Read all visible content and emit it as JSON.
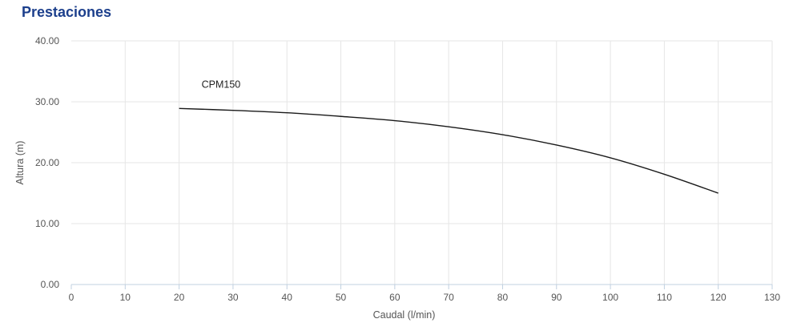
{
  "section": {
    "title": "Prestaciones"
  },
  "chart_data": {
    "type": "line",
    "title": "",
    "xlabel": "Caudal (l/min)",
    "ylabel": "Altura (m)",
    "xlim": [
      0,
      130
    ],
    "ylim": [
      0,
      40
    ],
    "x_ticks": [
      "0",
      "10",
      "20",
      "30",
      "40",
      "50",
      "60",
      "70",
      "80",
      "90",
      "100",
      "110",
      "120",
      "130"
    ],
    "y_ticks": [
      "0.00",
      "10.00",
      "20.00",
      "30.00",
      "40.00"
    ],
    "grid": true,
    "legend": "none",
    "series": [
      {
        "name": "CPM150",
        "color": "#1a1a1a",
        "x": [
          20,
          30,
          40,
          50,
          60,
          70,
          80,
          90,
          100,
          110,
          120
        ],
        "y": [
          28.9,
          28.6,
          28.2,
          27.6,
          26.9,
          25.9,
          24.6,
          22.9,
          20.8,
          18.1,
          15.0
        ]
      }
    ]
  }
}
